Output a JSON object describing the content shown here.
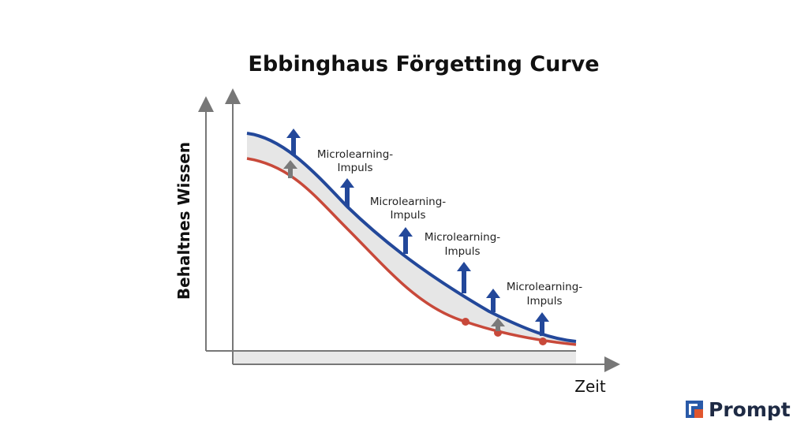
{
  "title": "Ebbinghaus Förgetting Curve",
  "axes": {
    "y_label": "Behaltnes Wissen",
    "x_label": "Zeit"
  },
  "annotations": [
    {
      "lines": [
        "Microlearning-",
        "Impuls"
      ]
    },
    {
      "lines": [
        "Microlearning-",
        "Impuls"
      ]
    },
    {
      "lines": [
        "Microlearning-",
        "Impuls"
      ]
    },
    {
      "lines": [
        "Microlearning-",
        "Impuls"
      ]
    }
  ],
  "logo": {
    "text": "Prompt"
  }
}
